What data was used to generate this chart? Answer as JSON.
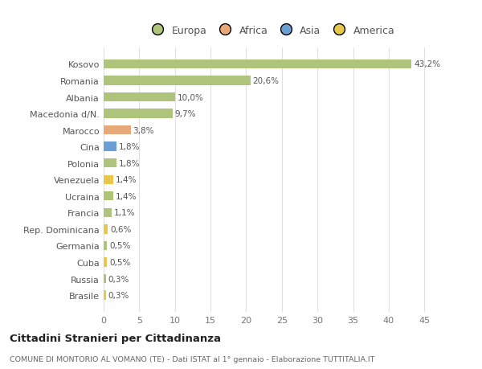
{
  "categories": [
    "Brasile",
    "Russia",
    "Cuba",
    "Germania",
    "Rep. Dominicana",
    "Francia",
    "Ucraina",
    "Venezuela",
    "Polonia",
    "Cina",
    "Marocco",
    "Macedonia d/N.",
    "Albania",
    "Romania",
    "Kosovo"
  ],
  "values": [
    0.3,
    0.3,
    0.5,
    0.5,
    0.6,
    1.1,
    1.4,
    1.4,
    1.8,
    1.8,
    3.8,
    9.7,
    10.0,
    20.6,
    43.2
  ],
  "colors": [
    "#e8c84a",
    "#aec47a",
    "#e8c84a",
    "#aec47a",
    "#e8c84a",
    "#aec47a",
    "#aec47a",
    "#e8c84a",
    "#aec47a",
    "#6b9fd4",
    "#e8a87a",
    "#aec47a",
    "#aec47a",
    "#aec47a",
    "#aec47a"
  ],
  "labels": [
    "0,3%",
    "0,3%",
    "0,5%",
    "0,5%",
    "0,6%",
    "1,1%",
    "1,4%",
    "1,4%",
    "1,8%",
    "1,8%",
    "3,8%",
    "9,7%",
    "10,0%",
    "20,6%",
    "43,2%"
  ],
  "legend_labels": [
    "Europa",
    "Africa",
    "Asia",
    "America"
  ],
  "legend_colors": [
    "#aec47a",
    "#e8a87a",
    "#6b9fd4",
    "#e8c84a"
  ],
  "title": "Cittadini Stranieri per Cittadinanza",
  "subtitle": "COMUNE DI MONTORIO AL VOMANO (TE) - Dati ISTAT al 1° gennaio - Elaborazione TUTTITALIA.IT",
  "xlim": [
    0,
    47
  ],
  "xticks": [
    0,
    5,
    10,
    15,
    20,
    25,
    30,
    35,
    40,
    45
  ],
  "background_color": "#ffffff",
  "grid_color": "#e0e0e0",
  "bar_height": 0.55
}
